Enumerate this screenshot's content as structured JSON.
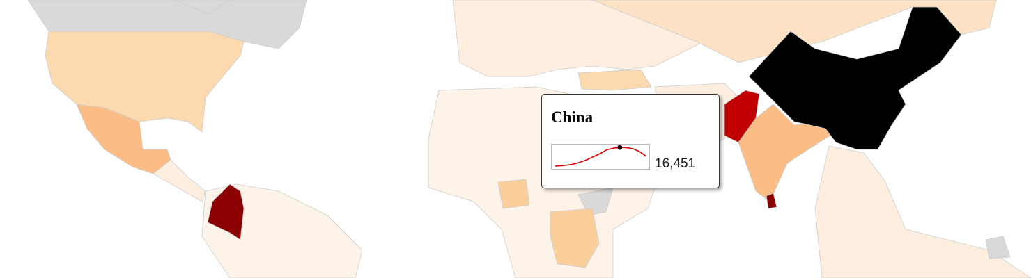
{
  "tooltip": {
    "title": "China",
    "value": "16,451",
    "sparkline": {
      "values": [
        1.5,
        1.8,
        2.4,
        3.3,
        4.8,
        6.8,
        9.2,
        11.6,
        14.6,
        15.8,
        16.45,
        16.2,
        15.4,
        13.2,
        9.5
      ],
      "color": "#e00000"
    }
  }
}
